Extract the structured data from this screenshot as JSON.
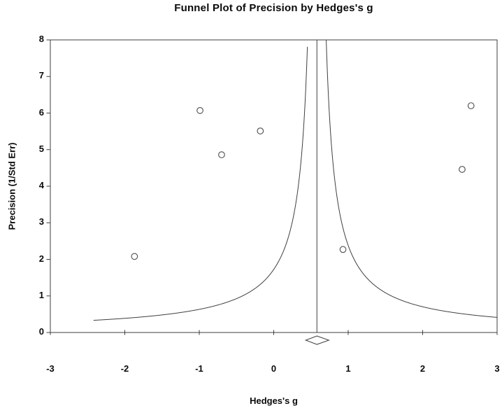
{
  "chart_data": {
    "type": "scatter",
    "title": "Funnel Plot of Precision by Hedges's g",
    "xlabel": "Hedges's g",
    "ylabel": "Precision (1/Std Err)",
    "xlim": [
      -3,
      3
    ],
    "ylim": [
      0,
      8
    ],
    "x_ticks": [
      "-3",
      "-2",
      "-1",
      "0",
      "1",
      "2",
      "3"
    ],
    "x_tick_values": [
      -3,
      -2,
      -1,
      0,
      1,
      2,
      3
    ],
    "y_ticks": [
      "0",
      "1",
      "2",
      "3",
      "4",
      "5",
      "6",
      "7",
      "8"
    ],
    "y_tick_values": [
      0,
      1,
      2,
      3,
      4,
      5,
      6,
      7,
      8
    ],
    "grid": false,
    "legend": "none",
    "marker": "open-circle",
    "points": [
      {
        "g": -1.87,
        "precision": 2.08
      },
      {
        "g": -0.99,
        "precision": 6.07
      },
      {
        "g": -0.7,
        "precision": 4.86
      },
      {
        "g": -0.18,
        "precision": 5.51
      },
      {
        "g": 0.93,
        "precision": 2.27
      },
      {
        "g": 2.53,
        "precision": 4.46
      },
      {
        "g": 2.65,
        "precision": 6.2
      }
    ],
    "mean_effect_g": 0.58,
    "funnel_curve": {
      "formula": "precision = se_multiplier / |g - mean_effect_g|",
      "se_multiplier": 1.0,
      "g_half_range": 3.0
    },
    "pooled_diamond": {
      "center_g": 0.58,
      "ci_low_g": 0.43,
      "ci_high_g": 0.74
    },
    "colors": {
      "line": "#3f3f3f",
      "marker_stroke": "#4a4a4a",
      "text": "#000000",
      "background": "#ffffff"
    }
  }
}
